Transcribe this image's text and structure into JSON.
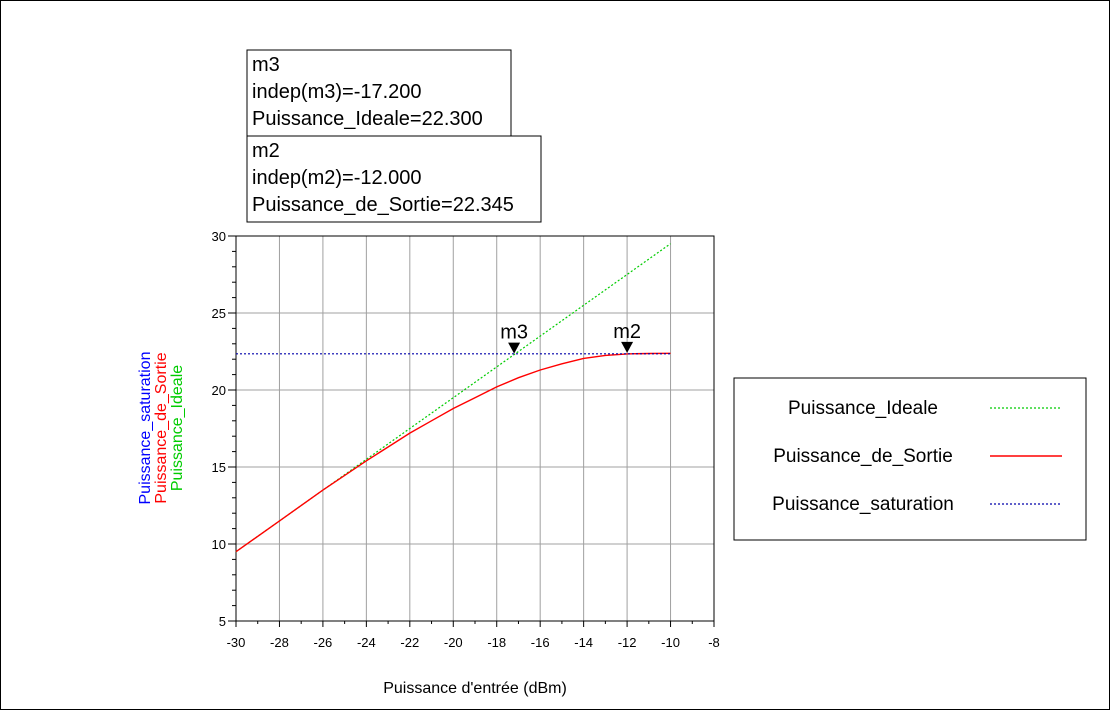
{
  "chart_data": {
    "type": "line",
    "xlabel": "Puissance d'entrée (dBm)",
    "ylabels": [
      {
        "text": "Puissance_saturation",
        "color": "#0000ff"
      },
      {
        "text": "Puissance_de_Sortie",
        "color": "#ff0000"
      },
      {
        "text": "Puissance_Ideale",
        "color": "#00cc00"
      }
    ],
    "xlim": [
      -30,
      -8
    ],
    "ylim": [
      5,
      30
    ],
    "xticks": [
      -30,
      -28,
      -26,
      -24,
      -22,
      -20,
      -18,
      -16,
      -14,
      -12,
      -10,
      -8
    ],
    "yticks": [
      5,
      10,
      15,
      20,
      25,
      30
    ],
    "grid": true,
    "legend_position": "right",
    "series": [
      {
        "name": "Puissance_Ideale",
        "color": "#00cc00",
        "style": "dotted",
        "x": [
          -30,
          -28,
          -26,
          -24,
          -22,
          -20,
          -18,
          -16,
          -14,
          -12,
          -10
        ],
        "y": [
          9.5,
          11.5,
          13.5,
          15.5,
          17.5,
          19.5,
          21.5,
          23.5,
          25.5,
          27.5,
          29.5
        ]
      },
      {
        "name": "Puissance_de_Sortie",
        "color": "#ff0000",
        "style": "solid",
        "x": [
          -30,
          -28,
          -26,
          -24,
          -23,
          -22,
          -21,
          -20,
          -19,
          -18,
          -17,
          -16,
          -15,
          -14,
          -13,
          -12,
          -11,
          -10
        ],
        "y": [
          9.5,
          11.5,
          13.5,
          15.4,
          16.3,
          17.2,
          18.0,
          18.8,
          19.5,
          20.2,
          20.8,
          21.3,
          21.7,
          22.05,
          22.25,
          22.345,
          22.37,
          22.38
        ]
      },
      {
        "name": "Puissance_saturation",
        "color": "#0000aa",
        "style": "dotted",
        "x": [
          -30,
          -10
        ],
        "y": [
          22.35,
          22.35
        ]
      }
    ],
    "markers": [
      {
        "label": "m3",
        "x": -17.2,
        "y": 22.3,
        "lines": [
          "m3",
          "indep(m3)=-17.200",
          "Puissance_Ideale=22.300"
        ]
      },
      {
        "label": "m2",
        "x": -12.0,
        "y": 22.345,
        "lines": [
          "m2",
          "indep(m2)=-12.000",
          "Puissance_de_Sortie=22.345"
        ]
      }
    ]
  }
}
